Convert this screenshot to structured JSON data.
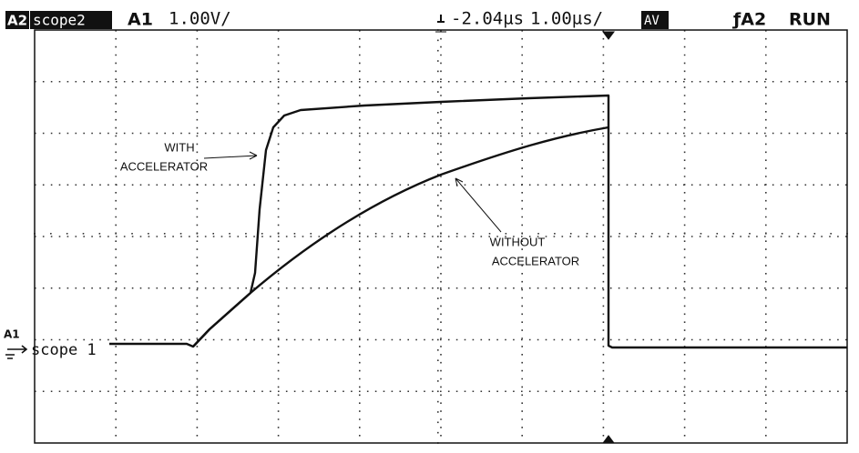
{
  "header": {
    "channel_tag": "A2",
    "trace_name": "scope2",
    "channel": "A1",
    "volts_per_div": "1.00V/",
    "delay": "-2.04µs",
    "time_per_div": "1.00µs/",
    "mode": "AV",
    "trigger": "ƒA2",
    "status": "RUN"
  },
  "annotations": {
    "with_line1": "WITH",
    "with_line2": "ACCELERATOR",
    "without_line1": "WITHOUT",
    "without_line2": "ACCELERATOR"
  },
  "marker": {
    "channel": "A1",
    "trace_name": "scope 1"
  }
}
